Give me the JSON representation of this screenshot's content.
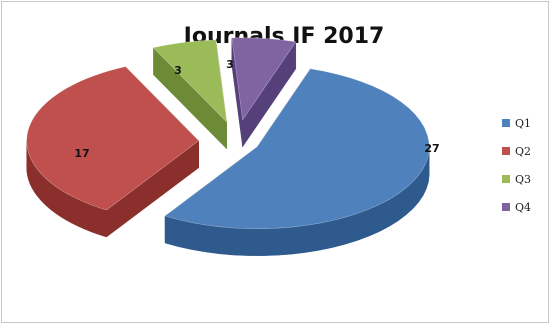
{
  "chart_data": {
    "type": "pie",
    "title": "Journals IF 2017",
    "categories": [
      "Q1",
      "Q2",
      "Q3",
      "Q4"
    ],
    "values": [
      27,
      17,
      3,
      3
    ],
    "data_labels": [
      "27",
      "17",
      "3",
      "3"
    ],
    "legend_position": "right",
    "exploded": true,
    "style": "3d",
    "colors": {
      "Q1": {
        "top": "#4f81bd",
        "side": "#2f5a8d"
      },
      "Q2": {
        "top": "#c0504d",
        "side": "#8b2f2d"
      },
      "Q3": {
        "top": "#9bbb59",
        "side": "#6d8a36"
      },
      "Q4": {
        "top": "#8064a2",
        "side": "#55407a"
      }
    }
  }
}
